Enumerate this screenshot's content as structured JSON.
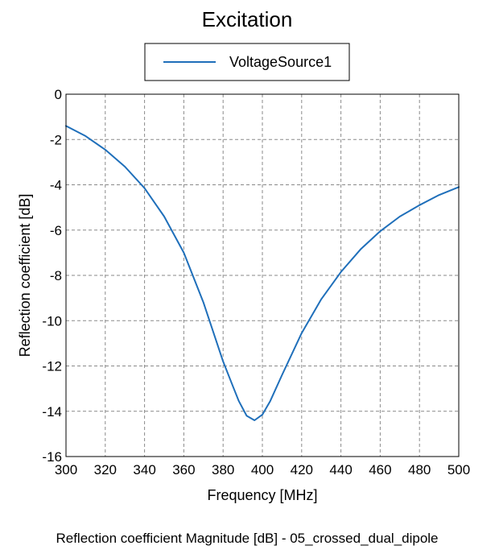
{
  "chart_data": {
    "type": "line",
    "title": "Excitation",
    "xlabel": "Frequency [MHz]",
    "ylabel": "Reflection coefficient [dB]",
    "xlim": [
      300,
      500
    ],
    "ylim": [
      -16,
      0
    ],
    "xticks": [
      300,
      320,
      340,
      360,
      380,
      400,
      420,
      440,
      460,
      480,
      500
    ],
    "yticks": [
      0,
      -2,
      -4,
      -6,
      -8,
      -10,
      -12,
      -14,
      -16
    ],
    "grid": true,
    "legend_position": "top-center",
    "series": [
      {
        "name": "VoltageSource1",
        "color": "#1f6fba",
        "x": [
          300,
          310,
          320,
          330,
          340,
          350,
          360,
          370,
          380,
          385,
          388,
          392,
          396,
          400,
          404,
          410,
          420,
          430,
          440,
          450,
          460,
          470,
          480,
          490,
          500
        ],
        "y": [
          -1.4,
          -1.85,
          -2.45,
          -3.2,
          -4.15,
          -5.4,
          -7.0,
          -9.2,
          -11.8,
          -12.9,
          -13.55,
          -14.2,
          -14.4,
          -14.15,
          -13.55,
          -12.4,
          -10.55,
          -9.05,
          -7.85,
          -6.85,
          -6.05,
          -5.4,
          -4.9,
          -4.45,
          -4.1
        ]
      }
    ],
    "caption": "Reflection coefficient Magnitude [dB] - 05_crossed_dual_dipole"
  }
}
